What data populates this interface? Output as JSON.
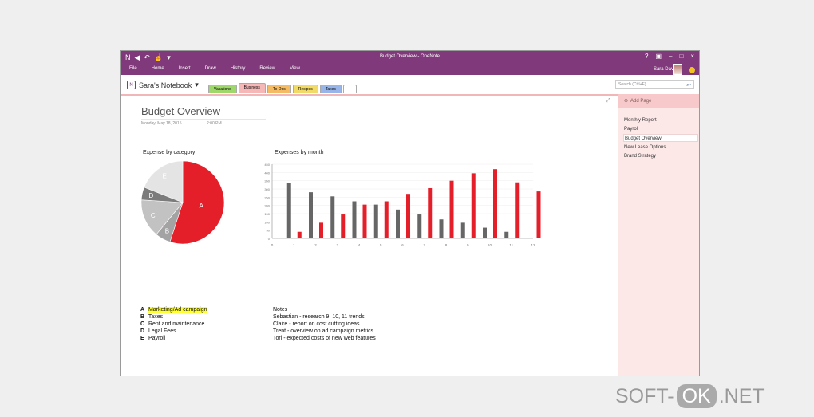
{
  "app": {
    "title": "Budget Overview - OneNote",
    "menu": [
      "File",
      "Home",
      "Insert",
      "Draw",
      "History",
      "Review",
      "View"
    ],
    "user": "Sara Davis",
    "notebook": "Sara's Notebook",
    "sections": [
      {
        "label": "Vacations",
        "color": "#9fd86a",
        "active": false
      },
      {
        "label": "Business",
        "color": "#f6b7b7",
        "active": true
      },
      {
        "label": "To-Dos",
        "color": "#f5bb62",
        "active": false
      },
      {
        "label": "Recipes",
        "color": "#f2da67",
        "active": false
      },
      {
        "label": "Taxes",
        "color": "#97b5e8",
        "active": false
      },
      {
        "label": "+",
        "color": "#ffffff",
        "active": false
      }
    ],
    "search_placeholder": "Search (Ctrl+E)"
  },
  "pages": {
    "add_label": "Add Page",
    "items": [
      {
        "label": "Monthly Report",
        "active": false
      },
      {
        "label": "Payroll",
        "active": false
      },
      {
        "label": "Budget Overview",
        "active": true
      },
      {
        "label": "New Lease Options",
        "active": false
      },
      {
        "label": "Brand Strategy",
        "active": false
      }
    ]
  },
  "page": {
    "title": "Budget Overview",
    "date": "Monday, May 18, 2015",
    "time": "2:00 PM"
  },
  "charts": {
    "expense_title": "Expense by category",
    "months_title": "Expenses by month"
  },
  "chart_data": [
    {
      "type": "pie",
      "title": "Expense by category",
      "categories": [
        "A",
        "B",
        "C",
        "D",
        "E"
      ],
      "values": [
        55,
        6,
        15,
        5,
        19
      ],
      "colors": [
        "#e51f2a",
        "#a3a3a3",
        "#c2c2c2",
        "#7b7b7b",
        "#e4e4e4"
      ]
    },
    {
      "type": "bar",
      "title": "Expenses by month",
      "categories": [
        "0",
        "1",
        "2",
        "3",
        "4",
        "5",
        "6",
        "7",
        "8",
        "9",
        "10",
        "11",
        "12"
      ],
      "ylim": [
        0,
        450
      ],
      "yticks": [
        0,
        50,
        100,
        150,
        200,
        250,
        300,
        350,
        400,
        450
      ],
      "series": [
        {
          "values": [
            0,
            335,
            280,
            255,
            225,
            205,
            175,
            145,
            115,
            95,
            65,
            40,
            0
          ],
          "color": "#666666"
        },
        {
          "values": [
            0,
            40,
            95,
            145,
            205,
            225,
            270,
            305,
            350,
            395,
            420,
            340,
            285
          ],
          "color": "#e51f2a"
        }
      ]
    }
  ],
  "legend": [
    {
      "key": "A",
      "label": "Marketing/Ad campaign",
      "highlight": true
    },
    {
      "key": "B",
      "label": "Taxes",
      "highlight": false
    },
    {
      "key": "C",
      "label": "Rent and maintenance",
      "highlight": false
    },
    {
      "key": "D",
      "label": "Legal Fees",
      "highlight": false
    },
    {
      "key": "E",
      "label": "Payroll",
      "highlight": false
    }
  ],
  "notes": {
    "title": "Notes",
    "items": [
      "Sebastian - research 9, 10, 11 trends",
      "Claire - report on cost cutting ideas",
      "Trent - overview on ad campaign metrics",
      "Tori - expected costs of new web features"
    ]
  },
  "watermark": {
    "left": "SOFT-",
    "mid": "OK",
    "right": ".NET"
  }
}
